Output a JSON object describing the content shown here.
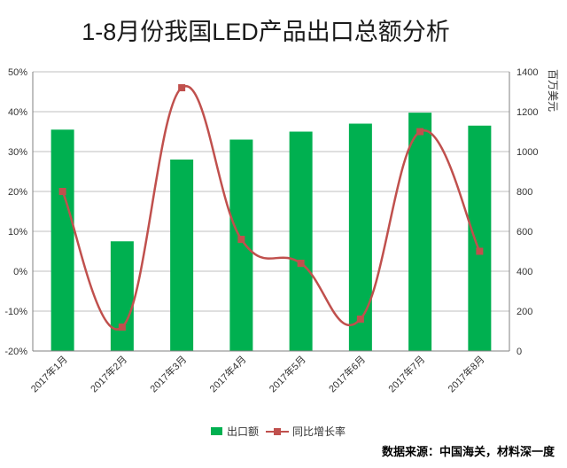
{
  "chart_data": {
    "type": "bar",
    "title": "1-8月份我国LED产品出口总额分析",
    "categories": [
      "2017年1月",
      "2017年2月",
      "2017年3月",
      "2017年4月",
      "2017年5月",
      "2017年6月",
      "2017年7月",
      "2017年8月"
    ],
    "series": [
      {
        "name": "出口额",
        "type": "bar",
        "axis": "right",
        "color": "#00b050",
        "values": [
          1110,
          550,
          960,
          1060,
          1100,
          1140,
          1195,
          1130
        ]
      },
      {
        "name": "同比增长率",
        "type": "line",
        "axis": "left",
        "color": "#c0504d",
        "values": [
          20,
          -14,
          46,
          8,
          2,
          -12,
          35,
          5
        ]
      }
    ],
    "y_left": {
      "min": -20,
      "max": 50,
      "step": 10,
      "ticks": [
        "-20%",
        "-10%",
        "0%",
        "10%",
        "20%",
        "30%",
        "40%",
        "50%"
      ]
    },
    "y_right": {
      "min": 0,
      "max": 1400,
      "step": 200,
      "label": "百万美元",
      "ticks": [
        "0",
        "200",
        "400",
        "600",
        "800",
        "1000",
        "1200",
        "1400"
      ]
    },
    "grid": true,
    "legend_position": "bottom"
  },
  "source": "数据来源：中国海关，材料深一度"
}
